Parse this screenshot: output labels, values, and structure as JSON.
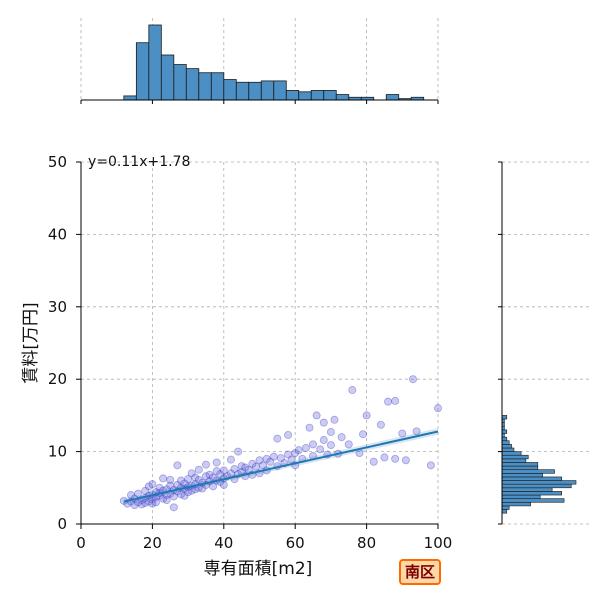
{
  "chart_data": {
    "type": "scatter",
    "xlabel": "専有面積[m2]",
    "ylabel": "賃料[万円]",
    "xlim": [
      0,
      100
    ],
    "ylim": [
      0,
      50
    ],
    "xticks": [
      0,
      20,
      40,
      60,
      80,
      100
    ],
    "yticks": [
      0,
      10,
      20,
      30,
      40,
      50
    ],
    "xtick_labels": [
      "0",
      "20",
      "40",
      "60",
      "80",
      "100"
    ],
    "ytick_labels": [
      "0",
      "10",
      "20",
      "30",
      "40",
      "50"
    ],
    "grid": true,
    "annotation": "y=0.11x+1.78",
    "regression": {
      "slope": 0.11,
      "intercept": 1.78,
      "x_range": [
        12,
        100
      ]
    },
    "series": [
      {
        "points": [
          [
            12,
            3.2
          ],
          [
            13,
            2.8
          ],
          [
            14,
            3.1
          ],
          [
            14,
            4.0
          ],
          [
            15,
            2.6
          ],
          [
            15,
            3.5
          ],
          [
            16,
            3.0
          ],
          [
            16,
            4.2
          ],
          [
            17,
            3.3
          ],
          [
            17,
            2.7
          ],
          [
            18,
            3.6
          ],
          [
            18,
            4.6
          ],
          [
            18,
            2.9
          ],
          [
            19,
            3.1
          ],
          [
            19,
            3.9
          ],
          [
            19,
            5.2
          ],
          [
            20,
            3.4
          ],
          [
            20,
            4.1
          ],
          [
            20,
            2.8
          ],
          [
            20,
            5.5
          ],
          [
            21,
            3.7
          ],
          [
            21,
            4.4
          ],
          [
            21,
            3.0
          ],
          [
            22,
            3.9
          ],
          [
            22,
            5.0
          ],
          [
            22,
            4.3
          ],
          [
            23,
            3.5
          ],
          [
            23,
            4.6
          ],
          [
            23,
            6.3
          ],
          [
            24,
            4.0
          ],
          [
            24,
            4.8
          ],
          [
            24,
            3.3
          ],
          [
            25,
            4.2
          ],
          [
            25,
            5.3
          ],
          [
            25,
            6.1
          ],
          [
            26,
            3.8
          ],
          [
            26,
            4.7
          ],
          [
            26,
            2.3
          ],
          [
            27,
            4.5
          ],
          [
            27,
            5.4
          ],
          [
            27,
            8.1
          ],
          [
            28,
            4.1
          ],
          [
            28,
            5.0
          ],
          [
            28,
            6.0
          ],
          [
            29,
            4.9
          ],
          [
            29,
            5.6
          ],
          [
            29,
            3.9
          ],
          [
            30,
            5.1
          ],
          [
            30,
            6.2
          ],
          [
            30,
            4.4
          ],
          [
            31,
            5.3
          ],
          [
            31,
            4.6
          ],
          [
            31,
            7.0
          ],
          [
            32,
            5.5
          ],
          [
            32,
            6.4
          ],
          [
            32,
            4.8
          ],
          [
            33,
            5.0
          ],
          [
            33,
            6.1
          ],
          [
            33,
            7.5
          ],
          [
            34,
            5.7
          ],
          [
            34,
            4.9
          ],
          [
            35,
            5.4
          ],
          [
            35,
            6.6
          ],
          [
            35,
            8.2
          ],
          [
            36,
            5.9
          ],
          [
            36,
            6.8
          ],
          [
            37,
            5.2
          ],
          [
            37,
            6.4
          ],
          [
            38,
            6.0
          ],
          [
            38,
            7.3
          ],
          [
            38,
            8.5
          ],
          [
            39,
            5.8
          ],
          [
            39,
            6.9
          ],
          [
            40,
            6.3
          ],
          [
            40,
            7.4
          ],
          [
            40,
            5.4
          ],
          [
            41,
            6.6
          ],
          [
            42,
            7.0
          ],
          [
            42,
            8.9
          ],
          [
            43,
            6.2
          ],
          [
            43,
            7.6
          ],
          [
            44,
            6.9
          ],
          [
            44,
            10.0
          ],
          [
            45,
            7.2
          ],
          [
            45,
            8.0
          ],
          [
            46,
            6.6
          ],
          [
            46,
            7.8
          ],
          [
            47,
            7.5
          ],
          [
            48,
            8.3
          ],
          [
            48,
            6.8
          ],
          [
            49,
            7.9
          ],
          [
            50,
            8.8
          ],
          [
            50,
            7.0
          ],
          [
            51,
            8.1
          ],
          [
            52,
            7.4
          ],
          [
            52,
            9.0
          ],
          [
            53,
            8.6
          ],
          [
            54,
            9.3
          ],
          [
            55,
            8.0
          ],
          [
            55,
            11.8
          ],
          [
            56,
            9.1
          ],
          [
            57,
            8.4
          ],
          [
            58,
            9.6
          ],
          [
            58,
            12.3
          ],
          [
            59,
            8.9
          ],
          [
            60,
            9.8
          ],
          [
            60,
            8.1
          ],
          [
            61,
            10.2
          ],
          [
            62,
            9.0
          ],
          [
            63,
            10.5
          ],
          [
            64,
            13.3
          ],
          [
            65,
            9.4
          ],
          [
            65,
            11.0
          ],
          [
            66,
            15.0
          ],
          [
            67,
            10.3
          ],
          [
            68,
            11.6
          ],
          [
            68,
            14.0
          ],
          [
            69,
            9.6
          ],
          [
            70,
            10.9
          ],
          [
            70,
            12.7
          ],
          [
            71,
            14.4
          ],
          [
            72,
            9.7
          ],
          [
            73,
            12.0
          ],
          [
            75,
            11.0
          ],
          [
            76,
            18.5
          ],
          [
            78,
            9.8
          ],
          [
            79,
            12.4
          ],
          [
            80,
            15.0
          ],
          [
            82,
            8.6
          ],
          [
            84,
            13.7
          ],
          [
            85,
            9.2
          ],
          [
            86,
            16.9
          ],
          [
            88,
            17.0
          ],
          [
            88,
            9.0
          ],
          [
            90,
            12.5
          ],
          [
            91,
            8.8
          ],
          [
            93,
            20.0
          ],
          [
            94,
            12.8
          ],
          [
            98,
            8.1
          ],
          [
            100,
            16.0
          ]
        ]
      }
    ],
    "x_histogram": {
      "bin_edges": [
        12,
        15.5,
        19,
        22.5,
        26,
        29.5,
        33,
        36.5,
        40,
        43.5,
        47,
        50.5,
        54,
        57.5,
        61,
        64.5,
        68,
        71.5,
        75,
        78.5,
        82,
        85.5,
        89,
        92.5,
        96
      ],
      "counts": [
        3,
        42,
        55,
        33,
        26,
        23,
        20,
        20,
        15,
        13,
        13,
        14,
        14,
        7,
        6,
        7,
        7,
        4,
        2,
        2,
        0,
        4,
        1,
        2
      ]
    },
    "y_histogram": {
      "bin_edges": [
        1.5,
        2.0,
        2.5,
        3.0,
        3.5,
        4.0,
        4.5,
        5.0,
        5.5,
        6.0,
        6.5,
        7.0,
        7.5,
        8.0,
        8.5,
        9.0,
        9.5,
        10.0,
        10.5,
        11.0,
        11.5,
        12.0,
        12.5,
        13.0,
        13.5,
        14.0,
        14.5,
        15.0
      ],
      "counts": [
        2,
        3,
        12,
        26,
        16,
        25,
        21,
        29,
        31,
        25,
        17,
        22,
        15,
        15,
        10,
        11,
        8,
        5,
        4,
        3,
        2,
        1,
        2,
        1,
        1,
        1,
        2,
        1
      ]
    }
  },
  "badge": {
    "label": "南区"
  },
  "colors": {
    "scatter_fill": "#6b6bdc",
    "scatter_edge": "#1f1fb8",
    "regression_line": "#1f77b4",
    "histogram_fill": "#4c8fc4",
    "histogram_edge": "#1a1a1a",
    "annotation_text": "#0000c8",
    "grid": "#b0b0b0"
  }
}
